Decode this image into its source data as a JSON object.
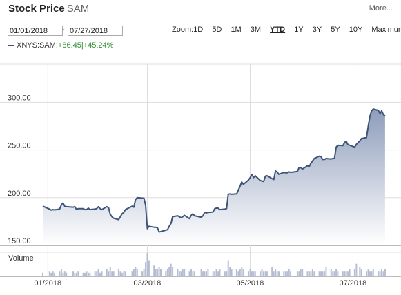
{
  "header": {
    "title_bold": "Stock Price",
    "title_ticker": "SAM",
    "more_label": "More..."
  },
  "range": {
    "from": "01/01/2018",
    "separator": "-",
    "to": "07/27/2018"
  },
  "zoom": {
    "label": "Zoom:",
    "options": [
      "1D",
      "5D",
      "1M",
      "3M",
      "YTD",
      "1Y",
      "3Y",
      "5Y",
      "10Y",
      "Maximum"
    ],
    "selected": "YTD"
  },
  "legend": {
    "symbol": "XNYS:SAM:",
    "change": "+86.45|+45.24%"
  },
  "colors": {
    "line": "#3d5478",
    "area_top": "#8e9dbb",
    "area_bottom": "#ffffff",
    "volume": "#b4bdd2",
    "grid": "#dddddd",
    "change": "#2e8b2e"
  },
  "chart_data": {
    "type": "area",
    "series": [
      {
        "name": "XNYS:SAM",
        "points": [
          [
            "2017-12-29",
            191.1
          ],
          [
            "2018-01-02",
            188
          ],
          [
            "2018-01-03",
            187
          ],
          [
            "2018-01-04",
            187.5
          ],
          [
            "2018-01-05",
            187.2
          ],
          [
            "2018-01-08",
            188
          ],
          [
            "2018-01-09",
            192.5
          ],
          [
            "2018-01-10",
            194.5
          ],
          [
            "2018-01-11",
            191
          ],
          [
            "2018-01-12",
            190.5
          ],
          [
            "2018-01-16",
            190
          ],
          [
            "2018-01-17",
            190.5
          ],
          [
            "2018-01-18",
            187.5
          ],
          [
            "2018-01-19",
            188.5
          ],
          [
            "2018-01-22",
            188.5
          ],
          [
            "2018-01-23",
            187.5
          ],
          [
            "2018-01-24",
            187.5
          ],
          [
            "2018-01-25",
            189
          ],
          [
            "2018-01-26",
            187.5
          ],
          [
            "2018-01-29",
            188
          ],
          [
            "2018-01-30",
            188.5
          ],
          [
            "2018-01-31",
            190.5
          ],
          [
            "2018-02-01",
            188.5
          ],
          [
            "2018-02-02",
            187.5
          ],
          [
            "2018-02-05",
            190.5
          ],
          [
            "2018-02-06",
            189.5
          ],
          [
            "2018-02-07",
            182.5
          ],
          [
            "2018-02-08",
            180
          ],
          [
            "2018-02-09",
            178.5
          ],
          [
            "2018-02-12",
            177
          ],
          [
            "2018-02-13",
            180
          ],
          [
            "2018-02-14",
            183
          ],
          [
            "2018-02-15",
            184.5
          ],
          [
            "2018-02-16",
            187.5
          ],
          [
            "2018-02-20",
            191
          ],
          [
            "2018-02-21",
            190
          ],
          [
            "2018-02-22",
            198
          ],
          [
            "2018-02-23",
            200
          ],
          [
            "2018-02-26",
            199.5
          ],
          [
            "2018-02-27",
            199.5
          ],
          [
            "2018-02-28",
            192
          ],
          [
            "2018-03-01",
            167.5
          ],
          [
            "2018-03-02",
            170
          ],
          [
            "2018-03-05",
            169
          ],
          [
            "2018-03-06",
            169
          ],
          [
            "2018-03-07",
            168.5
          ],
          [
            "2018-03-08",
            164
          ],
          [
            "2018-03-09",
            164.5
          ],
          [
            "2018-03-12",
            166
          ],
          [
            "2018-03-13",
            166.5
          ],
          [
            "2018-03-14",
            170
          ],
          [
            "2018-03-15",
            173
          ],
          [
            "2018-03-16",
            180
          ],
          [
            "2018-03-19",
            181
          ],
          [
            "2018-03-20",
            180
          ],
          [
            "2018-03-21",
            179
          ],
          [
            "2018-03-22",
            180
          ],
          [
            "2018-03-23",
            181.5
          ],
          [
            "2018-03-26",
            178
          ],
          [
            "2018-03-27",
            181.5
          ],
          [
            "2018-03-28",
            183
          ],
          [
            "2018-03-29",
            181
          ],
          [
            "2018-04-02",
            179.5
          ],
          [
            "2018-04-03",
            181
          ],
          [
            "2018-04-04",
            184.5
          ],
          [
            "2018-04-05",
            184
          ],
          [
            "2018-04-06",
            184.5
          ],
          [
            "2018-04-09",
            185
          ],
          [
            "2018-04-10",
            188.5
          ],
          [
            "2018-04-11",
            189
          ],
          [
            "2018-04-12",
            189
          ],
          [
            "2018-04-13",
            187.5
          ],
          [
            "2018-04-16",
            188
          ],
          [
            "2018-04-17",
            188.5
          ],
          [
            "2018-04-18",
            203.5
          ],
          [
            "2018-04-19",
            204
          ],
          [
            "2018-04-20",
            203.5
          ],
          [
            "2018-04-23",
            204
          ],
          [
            "2018-04-24",
            208
          ],
          [
            "2018-04-25",
            212
          ],
          [
            "2018-04-26",
            216.5
          ],
          [
            "2018-04-27",
            214
          ],
          [
            "2018-04-30",
            218.5
          ],
          [
            "2018-05-01",
            221
          ],
          [
            "2018-05-02",
            224.5
          ],
          [
            "2018-05-03",
            221
          ],
          [
            "2018-05-04",
            223
          ],
          [
            "2018-05-07",
            218
          ],
          [
            "2018-05-08",
            217.5
          ],
          [
            "2018-05-09",
            217
          ],
          [
            "2018-05-10",
            222.5
          ],
          [
            "2018-05-11",
            223
          ],
          [
            "2018-05-14",
            220
          ],
          [
            "2018-05-15",
            219
          ],
          [
            "2018-05-16",
            228
          ],
          [
            "2018-05-17",
            227
          ],
          [
            "2018-05-18",
            224.5
          ],
          [
            "2018-05-21",
            226.5
          ],
          [
            "2018-05-22",
            226
          ],
          [
            "2018-05-23",
            226
          ],
          [
            "2018-05-24",
            227
          ],
          [
            "2018-05-25",
            226.5
          ],
          [
            "2018-05-29",
            227.5
          ],
          [
            "2018-05-30",
            231.5
          ],
          [
            "2018-05-31",
            231.5
          ],
          [
            "2018-06-01",
            230
          ],
          [
            "2018-06-04",
            233.5
          ],
          [
            "2018-06-05",
            232.5
          ],
          [
            "2018-06-06",
            236
          ],
          [
            "2018-06-07",
            238.5
          ],
          [
            "2018-06-08",
            241
          ],
          [
            "2018-06-11",
            243.5
          ],
          [
            "2018-06-12",
            243
          ],
          [
            "2018-06-13",
            240
          ],
          [
            "2018-06-14",
            240
          ],
          [
            "2018-06-15",
            241
          ],
          [
            "2018-06-18",
            240.5
          ],
          [
            "2018-06-19",
            241
          ],
          [
            "2018-06-20",
            241
          ],
          [
            "2018-06-21",
            253
          ],
          [
            "2018-06-22",
            255
          ],
          [
            "2018-06-25",
            254.5
          ],
          [
            "2018-06-26",
            258
          ],
          [
            "2018-06-27",
            259
          ],
          [
            "2018-06-28",
            255.5
          ],
          [
            "2018-06-29",
            255
          ],
          [
            "2018-07-02",
            253
          ],
          [
            "2018-07-03",
            256
          ],
          [
            "2018-07-05",
            259.5
          ],
          [
            "2018-07-06",
            262
          ],
          [
            "2018-07-09",
            263
          ],
          [
            "2018-07-10",
            275
          ],
          [
            "2018-07-11",
            285
          ],
          [
            "2018-07-12",
            291
          ],
          [
            "2018-07-13",
            293
          ],
          [
            "2018-07-16",
            291.5
          ],
          [
            "2018-07-17",
            288
          ],
          [
            "2018-07-18",
            291
          ],
          [
            "2018-07-19",
            287
          ],
          [
            "2018-07-20",
            285.5
          ]
        ]
      }
    ],
    "volume": {
      "label": "Volume",
      "values": [
        2,
        3,
        2,
        3,
        2,
        3,
        4,
        2,
        3,
        2,
        3,
        2,
        2,
        3,
        2,
        2,
        3,
        2,
        2,
        3,
        3,
        4,
        2,
        3,
        4,
        3,
        5,
        3,
        3,
        4,
        3,
        2,
        3,
        3,
        3,
        4,
        5,
        4,
        3,
        4,
        8,
        13,
        9,
        6,
        4,
        4,
        5,
        4,
        3,
        4,
        5,
        7,
        5,
        4,
        3,
        3,
        4,
        4,
        3,
        4,
        3,
        3,
        4,
        3,
        3,
        3,
        4,
        3,
        3,
        4,
        3,
        4,
        3,
        3,
        9,
        5,
        4,
        4,
        3,
        4,
        5,
        4,
        3,
        4,
        3,
        3,
        3,
        3,
        4,
        3,
        3,
        3,
        5,
        3,
        4,
        3,
        3,
        3,
        3,
        3,
        4,
        3,
        3,
        3,
        4,
        4,
        3,
        3,
        3,
        4,
        3,
        3,
        3,
        3,
        3,
        5,
        4,
        3,
        3,
        4,
        3,
        3,
        3,
        3,
        3,
        4,
        4,
        7,
        5,
        4,
        3,
        4,
        3,
        3,
        4,
        3,
        3,
        4,
        3,
        4
      ]
    },
    "x_axis": {
      "range": [
        "2017-12-29",
        "2018-07-27"
      ],
      "ticks": [
        [
          "2018-01-01",
          "01/2018"
        ],
        [
          "2018-03-01",
          "03/2018"
        ],
        [
          "2018-05-01",
          "05/2018"
        ],
        [
          "2018-07-01",
          "07/2018"
        ]
      ]
    },
    "y_axis": {
      "range": [
        150,
        340
      ],
      "ticks": [
        150,
        200,
        250,
        300
      ],
      "tick_labels": [
        "150.00",
        "200.00",
        "250.00",
        "300.00"
      ]
    },
    "grid": true
  }
}
